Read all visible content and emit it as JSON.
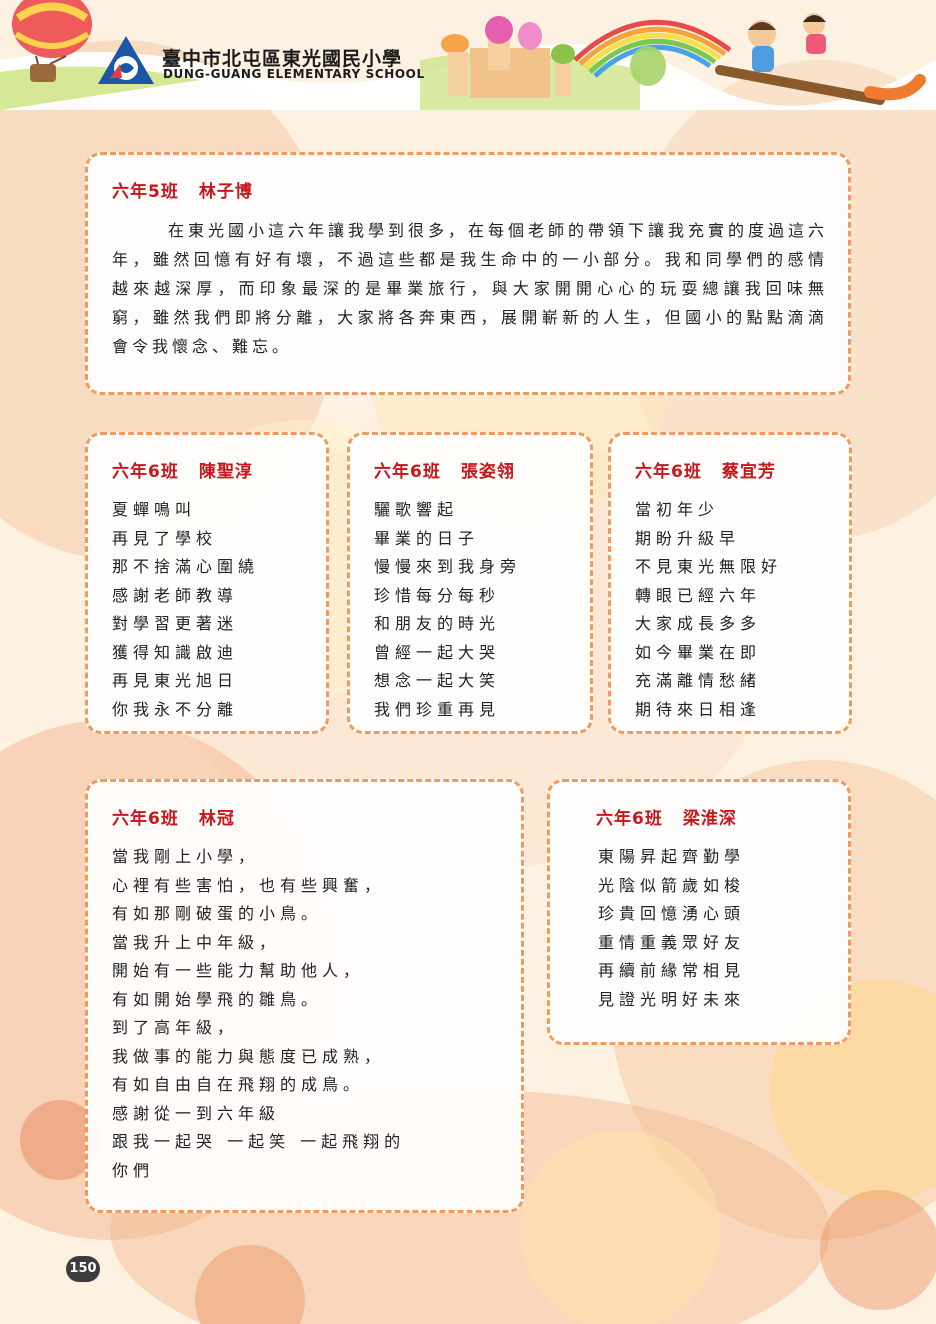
{
  "header": {
    "school_name": "臺中市北屯區東光國民小學",
    "school_name_en": "DUNG-GUANG ELEMENTARY SCHOOL"
  },
  "essay": {
    "class": "六年5班",
    "author": "林子博",
    "text": "在東光國小這六年讓我學到很多，在每個老師的帶領下讓我充實的度過這六年，雖然回憶有好有壞，不過這些都是我生命中的一小部分。我和同學們的感情越來越深厚，而印象最深的是畢業旅行，與大家開開心心的玩耍總讓我回味無窮，雖然我們即將分離，大家將各奔東西，展開嶄新的人生，但國小的點點滴滴會令我懷念、難忘。"
  },
  "poems": [
    {
      "class": "六年6班",
      "author": "陳聖淳",
      "lines": [
        "夏蟬鳴叫",
        "再見了學校",
        "那不捨滿心圍繞",
        "感謝老師教導",
        "對學習更著迷",
        "獲得知識啟迪",
        "再見東光旭日",
        "你我永不分離"
      ]
    },
    {
      "class": "六年6班",
      "author": "張姿翎",
      "lines": [
        "驪歌響起",
        "畢業的日子",
        "慢慢來到我身旁",
        "珍惜每分每秒",
        "和朋友的時光",
        "曾經一起大哭",
        "想念一起大笑",
        "我們珍重再見"
      ]
    },
    {
      "class": "六年6班",
      "author": "蔡宜芳",
      "lines": [
        "當初年少",
        "期盼升級早",
        "不見東光無限好",
        "轉眼已經六年",
        "大家成長多多",
        "如今畢業在即",
        "充滿離情愁緒",
        "期待來日相逢"
      ]
    },
    {
      "class": "六年6班",
      "author": "林冠",
      "lines": [
        "當我剛上小學，",
        "心裡有些害怕，也有些興奮，",
        "有如那剛破蛋的小鳥。",
        "當我升上中年級，",
        "開始有一些能力幫助他人，",
        "有如開始學飛的雛鳥。",
        "到了高年級，",
        "我做事的能力與態度已成熟，",
        "有如自由自在飛翔的成鳥。",
        "感謝從一到六年級",
        "跟我一起哭 一起笑 一起飛翔的",
        "你們"
      ]
    },
    {
      "class": "六年6班",
      "author": "梁淮深",
      "lines": [
        "東陽昇起齊勤學",
        "光陰似箭歲如梭",
        "珍貴回憶湧心頭",
        "重情重義眾好友",
        "再續前緣常相見",
        "見證光明好未來"
      ]
    }
  ],
  "page_number": "150",
  "colors": {
    "title": "#c8161d",
    "border": "#f29a5c"
  }
}
